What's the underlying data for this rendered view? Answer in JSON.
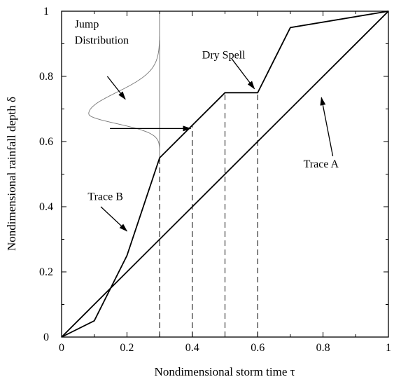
{
  "chart_data": {
    "type": "line",
    "xlabel": "Nondimensional storm time τ",
    "ylabel": "Nondimensional rainfall depth δ",
    "xlim": [
      0,
      1
    ],
    "ylim": [
      0,
      1
    ],
    "xticks": [
      {
        "value": 0,
        "label": "0"
      },
      {
        "value": 0.2,
        "label": "0.2"
      },
      {
        "value": 0.4,
        "label": "0.4"
      },
      {
        "value": 0.6,
        "label": "0.6"
      },
      {
        "value": 0.8,
        "label": "0.8"
      },
      {
        "value": 1,
        "label": "1"
      }
    ],
    "yticks": [
      {
        "value": 0,
        "label": "0"
      },
      {
        "value": 0.2,
        "label": "0.2"
      },
      {
        "value": 0.4,
        "label": "0.4"
      },
      {
        "value": 0.6,
        "label": "0.6"
      },
      {
        "value": 0.8,
        "label": "0.8"
      },
      {
        "value": 1,
        "label": "1"
      }
    ],
    "grid": false,
    "series": [
      {
        "name": "Trace A",
        "x": [
          0,
          1
        ],
        "y": [
          0,
          1
        ]
      },
      {
        "name": "Trace B",
        "x": [
          0,
          0.1,
          0.2,
          0.3,
          0.5,
          0.6,
          0.7,
          1
        ],
        "y": [
          0,
          0.05,
          0.25,
          0.55,
          0.75,
          0.75,
          0.95,
          1
        ]
      }
    ],
    "jump_distribution": {
      "x_base": 0.3,
      "peak_y": 0.685,
      "peak_x": 0.083,
      "sigma": 0.03,
      "y_range": [
        0.55,
        1
      ]
    },
    "dashed_lines": [
      {
        "x": 0.3,
        "y": 0.55
      },
      {
        "x": 0.4,
        "y": 0.65
      },
      {
        "x": 0.5,
        "y": 0.75
      },
      {
        "x": 0.6,
        "y": 0.75
      }
    ],
    "annotations": [
      {
        "label": "Jump",
        "x": 0.04,
        "y": 0.95
      },
      {
        "label": "Distribution",
        "x": 0.04,
        "y": 0.9
      },
      {
        "label": "Dry Spell",
        "x": 0.43,
        "y": 0.855
      },
      {
        "label": "Trace A",
        "x": 0.74,
        "y": 0.52
      },
      {
        "label": "Trace B",
        "x": 0.08,
        "y": 0.42
      }
    ],
    "arrows": [
      {
        "from": [
          0.14,
          0.8
        ],
        "to": [
          0.195,
          0.73
        ]
      },
      {
        "from": [
          0.148,
          0.64
        ],
        "to": [
          0.395,
          0.64
        ]
      },
      {
        "from": [
          0.52,
          0.855
        ],
        "to": [
          0.59,
          0.762
        ]
      },
      {
        "from": [
          0.83,
          0.555
        ],
        "to": [
          0.795,
          0.735
        ]
      },
      {
        "from": [
          0.12,
          0.4
        ],
        "to": [
          0.2,
          0.325
        ]
      }
    ]
  }
}
